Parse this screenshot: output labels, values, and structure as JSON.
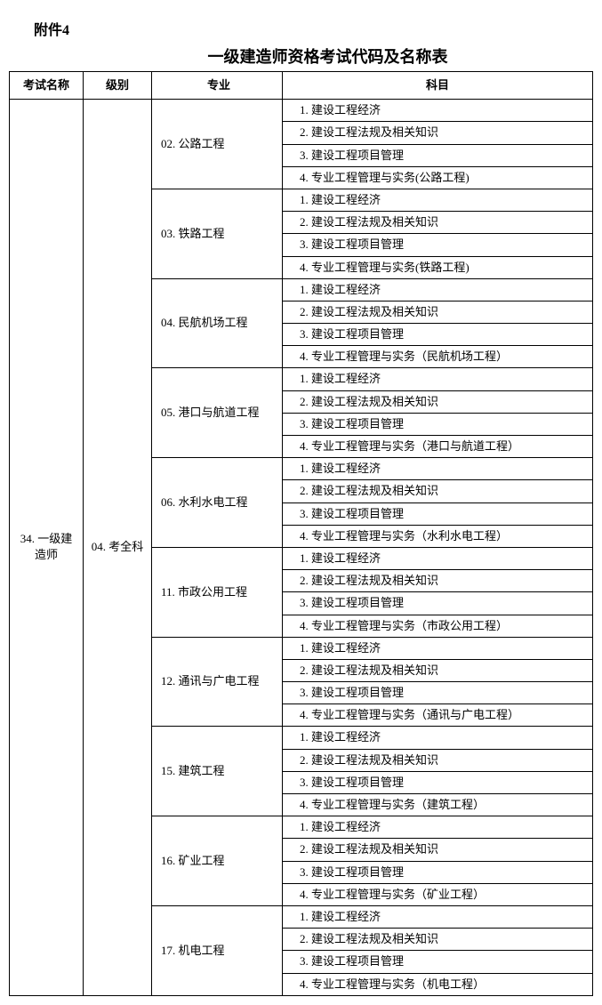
{
  "attachment_label": "附件4",
  "title": "一级建造师资格考试代码及名称表",
  "headers": {
    "exam_name": "考试名称",
    "level": "级别",
    "specialty": "专业",
    "subject": "科目"
  },
  "exam_name": "34. 一级建造师",
  "level": "04. 考全科",
  "specialties": [
    {
      "label": "02. 公路工程",
      "subjects": [
        "　1. 建设工程经济",
        "　2. 建设工程法规及相关知识",
        "　3. 建设工程项目管理",
        "　4. 专业工程管理与实务(公路工程)"
      ]
    },
    {
      "label": "03. 铁路工程",
      "subjects": [
        "　1. 建设工程经济",
        "　2. 建设工程法规及相关知识",
        "　3. 建设工程项目管理",
        "　4. 专业工程管理与实务(铁路工程)"
      ]
    },
    {
      "label": "04. 民航机场工程",
      "subjects": [
        "　1. 建设工程经济",
        "　2. 建设工程法规及相关知识",
        "　3. 建设工程项目管理",
        "　4. 专业工程管理与实务（民航机场工程）"
      ]
    },
    {
      "label": "05. 港口与航道工程",
      "subjects": [
        "　1. 建设工程经济",
        "　2. 建设工程法规及相关知识",
        "　3. 建设工程项目管理",
        "　4. 专业工程管理与实务（港口与航道工程）"
      ]
    },
    {
      "label": "06. 水利水电工程",
      "subjects": [
        "　1. 建设工程经济",
        "　2. 建设工程法规及相关知识",
        "　3. 建设工程项目管理",
        "　4. 专业工程管理与实务（水利水电工程）"
      ]
    },
    {
      "label": "11. 市政公用工程",
      "subjects": [
        "　1. 建设工程经济",
        "　2. 建设工程法规及相关知识",
        "　3. 建设工程项目管理",
        "　4. 专业工程管理与实务（市政公用工程）"
      ]
    },
    {
      "label": "12. 通讯与广电工程",
      "subjects": [
        "　1. 建设工程经济",
        "　2. 建设工程法规及相关知识",
        "　3. 建设工程项目管理",
        "　4. 专业工程管理与实务（通讯与广电工程）"
      ]
    },
    {
      "label": "15. 建筑工程",
      "subjects": [
        "　1. 建设工程经济",
        "　2. 建设工程法规及相关知识",
        "　3. 建设工程项目管理",
        "　4. 专业工程管理与实务（建筑工程）"
      ]
    },
    {
      "label": "16. 矿业工程",
      "subjects": [
        "　1. 建设工程经济",
        "　2. 建设工程法规及相关知识",
        "　3. 建设工程项目管理",
        "　4. 专业工程管理与实务（矿业工程）"
      ]
    },
    {
      "label": "17. 机电工程",
      "subjects": [
        "　1. 建设工程经济",
        "　2. 建设工程法规及相关知识",
        "　3. 建设工程项目管理",
        "　4. 专业工程管理与实务（机电工程）"
      ]
    }
  ]
}
